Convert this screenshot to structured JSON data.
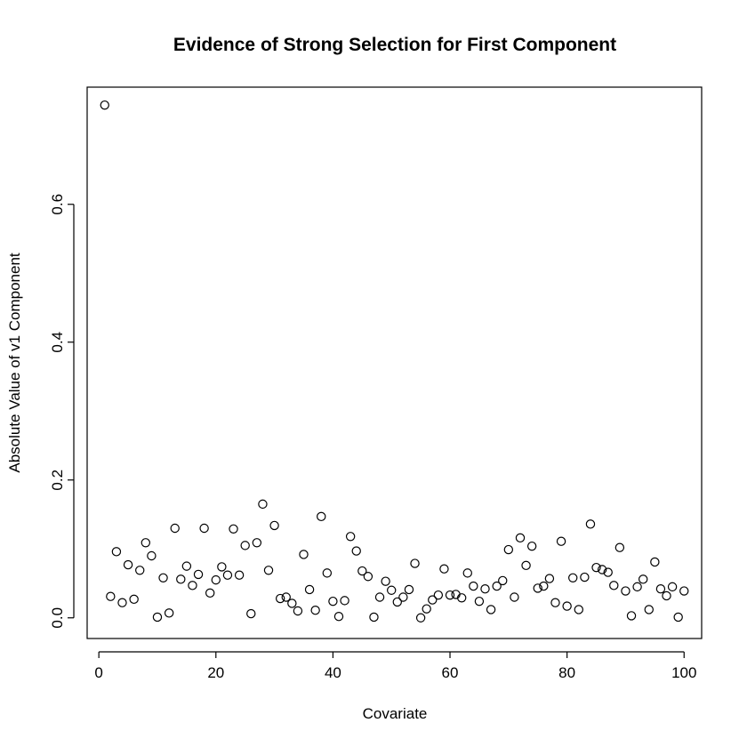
{
  "chart_data": {
    "type": "scatter",
    "title": "Evidence of Strong Selection for First Component",
    "xlabel": "Covariate",
    "ylabel": "Absolute Value of v1 Component",
    "xlim": [
      -2,
      103
    ],
    "ylim": [
      -0.03,
      0.77
    ],
    "xticks": [
      0,
      20,
      40,
      60,
      80,
      100
    ],
    "xtick_labels": [
      "0",
      "20",
      "40",
      "60",
      "80",
      "100"
    ],
    "yticks": [
      0.0,
      0.2,
      0.4,
      0.6
    ],
    "ytick_labels": [
      "0.0",
      "0.2",
      "0.4",
      "0.6"
    ],
    "grid": false,
    "marker": "open-circle",
    "x": [
      1,
      2,
      3,
      4,
      5,
      6,
      7,
      8,
      9,
      10,
      11,
      12,
      13,
      14,
      15,
      16,
      17,
      18,
      19,
      20,
      21,
      22,
      23,
      24,
      25,
      26,
      27,
      28,
      29,
      30,
      31,
      32,
      33,
      34,
      35,
      36,
      37,
      38,
      39,
      40,
      41,
      42,
      43,
      44,
      45,
      46,
      47,
      48,
      49,
      50,
      51,
      52,
      53,
      54,
      55,
      56,
      57,
      58,
      59,
      60,
      61,
      62,
      63,
      64,
      65,
      66,
      67,
      68,
      69,
      70,
      71,
      72,
      73,
      74,
      75,
      76,
      77,
      78,
      79,
      80,
      81,
      82,
      83,
      84,
      85,
      86,
      87,
      88,
      89,
      90,
      91,
      92,
      93,
      94,
      95,
      96,
      97,
      98,
      99,
      100
    ],
    "y": [
      0.744,
      0.031,
      0.096,
      0.022,
      0.077,
      0.027,
      0.069,
      0.109,
      0.09,
      0.001,
      0.058,
      0.007,
      0.13,
      0.056,
      0.075,
      0.047,
      0.063,
      0.13,
      0.036,
      0.055,
      0.074,
      0.062,
      0.129,
      0.062,
      0.105,
      0.006,
      0.109,
      0.165,
      0.069,
      0.134,
      0.028,
      0.03,
      0.021,
      0.01,
      0.092,
      0.041,
      0.011,
      0.147,
      0.065,
      0.024,
      0.002,
      0.025,
      0.118,
      0.097,
      0.068,
      0.06,
      0.001,
      0.03,
      0.053,
      0.04,
      0.023,
      0.03,
      0.041,
      0.079,
      0.0,
      0.013,
      0.026,
      0.033,
      0.071,
      0.033,
      0.034,
      0.029,
      0.065,
      0.046,
      0.024,
      0.042,
      0.012,
      0.046,
      0.054,
      0.099,
      0.03,
      0.116,
      0.076,
      0.104,
      0.043,
      0.046,
      0.057,
      0.022,
      0.111,
      0.017,
      0.058,
      0.012,
      0.059,
      0.136,
      0.073,
      0.07,
      0.066,
      0.047,
      0.102,
      0.039,
      0.003,
      0.045,
      0.056,
      0.012,
      0.081,
      0.042,
      0.032,
      0.045,
      0.001,
      0.039
    ]
  }
}
